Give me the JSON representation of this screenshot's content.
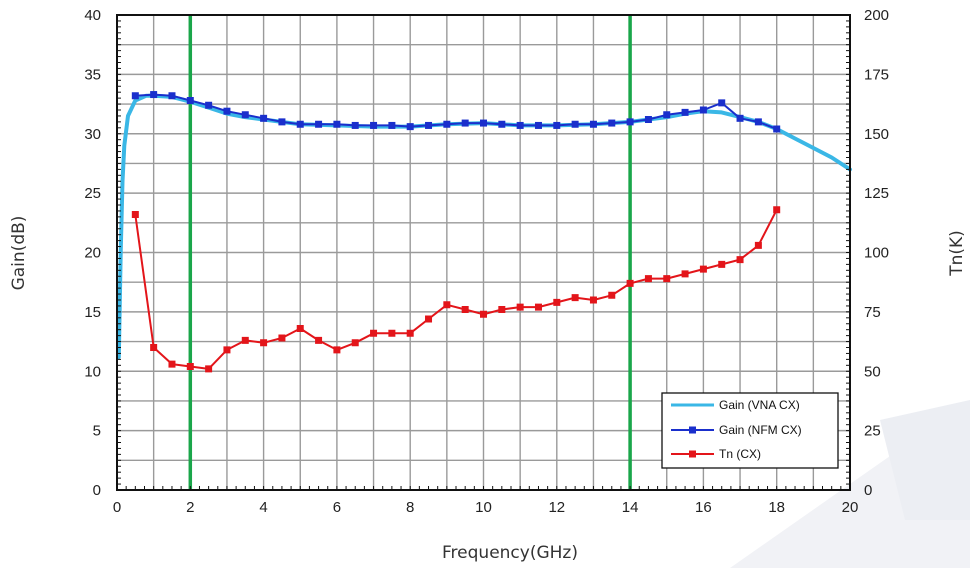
{
  "chart_data": {
    "type": "line",
    "title": "",
    "xlabel": "Frequency(GHz)",
    "ylabel_left": "Gain(dB)",
    "ylabel_right": "Tn(K)",
    "xlim": [
      0,
      20
    ],
    "ylim_left": [
      0,
      40
    ],
    "ylim_right": [
      0,
      200
    ],
    "x_ticks": [
      "0",
      "2",
      "4",
      "6",
      "8",
      "10",
      "12",
      "14",
      "16",
      "18",
      "20"
    ],
    "y_left_ticks": [
      "0",
      "5",
      "10",
      "15",
      "20",
      "25",
      "30",
      "35",
      "40"
    ],
    "y_right_ticks": [
      "0",
      "25",
      "50",
      "75",
      "100",
      "125",
      "150",
      "175",
      "200"
    ],
    "grid": true,
    "legend_position": "bottom-right",
    "markers_vertical": [
      2,
      14
    ],
    "colors": {
      "vna": "#3ab7e6",
      "nfm": "#1a2fcc",
      "tn": "#e3151a",
      "marker_lines": "#1aa64a",
      "grid": "#9a9a9a"
    },
    "series": [
      {
        "name": "Gain (VNA CX)",
        "axis": "left",
        "style": "line",
        "x": [
          0.05,
          0.1,
          0.15,
          0.2,
          0.3,
          0.5,
          0.8,
          1.0,
          1.5,
          2.0,
          2.5,
          3.0,
          3.5,
          4.0,
          5.0,
          6.0,
          7.0,
          8.0,
          9.0,
          10.0,
          11.0,
          12.0,
          13.0,
          14.0,
          15.0,
          15.5,
          16.0,
          16.5,
          17.0,
          17.5,
          18.0,
          18.5,
          19.0,
          19.5,
          20.0
        ],
        "values": [
          11.2,
          20.0,
          26.0,
          29.0,
          31.5,
          32.8,
          33.2,
          33.2,
          33.1,
          32.7,
          32.2,
          31.7,
          31.4,
          31.2,
          30.8,
          30.7,
          30.6,
          30.6,
          30.8,
          30.9,
          30.7,
          30.7,
          30.8,
          31.0,
          31.4,
          31.7,
          31.9,
          31.8,
          31.4,
          31.0,
          30.4,
          29.6,
          28.8,
          28.0,
          27.0
        ]
      },
      {
        "name": "Gain (NFM CX)",
        "axis": "left",
        "style": "line-marker",
        "x": [
          0.5,
          1.0,
          1.5,
          2.0,
          2.5,
          3.0,
          3.5,
          4.0,
          4.5,
          5.0,
          5.5,
          6.0,
          6.5,
          7.0,
          7.5,
          8.0,
          8.5,
          9.0,
          9.5,
          10.0,
          10.5,
          11.0,
          11.5,
          12.0,
          12.5,
          13.0,
          13.5,
          14.0,
          14.5,
          15.0,
          15.5,
          16.0,
          16.5,
          17.0,
          17.5,
          18.0
        ],
        "values": [
          33.2,
          33.3,
          33.2,
          32.8,
          32.4,
          31.9,
          31.6,
          31.3,
          31.0,
          30.8,
          30.8,
          30.8,
          30.7,
          30.7,
          30.7,
          30.6,
          30.7,
          30.8,
          30.9,
          30.9,
          30.8,
          30.7,
          30.7,
          30.7,
          30.8,
          30.8,
          30.9,
          31.0,
          31.2,
          31.6,
          31.8,
          32.0,
          32.6,
          31.3,
          31.0,
          30.4
        ]
      },
      {
        "name": "Tn (CX)",
        "axis": "right",
        "style": "line-marker",
        "x": [
          0.5,
          1.0,
          1.5,
          2.0,
          2.5,
          3.0,
          3.5,
          4.0,
          4.5,
          5.0,
          5.5,
          6.0,
          6.5,
          7.0,
          7.5,
          8.0,
          8.5,
          9.0,
          9.5,
          10.0,
          10.5,
          11.0,
          11.5,
          12.0,
          12.5,
          13.0,
          13.5,
          14.0,
          14.5,
          15.0,
          15.5,
          16.0,
          16.5,
          17.0,
          17.5,
          18.0
        ],
        "values": [
          116,
          60,
          53,
          52,
          51,
          59,
          63,
          62,
          64,
          68,
          63,
          59,
          62,
          66,
          66,
          66,
          72,
          78,
          76,
          74,
          76,
          77,
          77,
          79,
          81,
          80,
          82,
          87,
          89,
          89,
          91,
          93,
          95,
          97,
          103,
          118
        ]
      }
    ]
  }
}
